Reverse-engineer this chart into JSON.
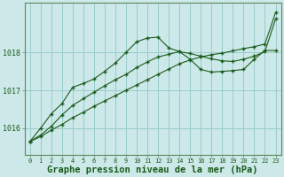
{
  "background_color": "#cce8e8",
  "plot_bg_color": "#cce8e8",
  "line_color": "#1a5c1a",
  "grid_color": "#99cccc",
  "xlabel": "Graphe pression niveau de la mer (hPa)",
  "xlabel_fontsize": 7.5,
  "ylim": [
    1015.3,
    1019.3
  ],
  "xlim": [
    -0.5,
    23.5
  ],
  "yticks": [
    1016,
    1017,
    1018
  ],
  "xticks": [
    0,
    1,
    2,
    3,
    4,
    5,
    6,
    7,
    8,
    9,
    10,
    11,
    12,
    13,
    14,
    15,
    16,
    17,
    18,
    19,
    20,
    21,
    22,
    23
  ],
  "series1_x": [
    0,
    1,
    2,
    3,
    4,
    5,
    6,
    7,
    8,
    9,
    10,
    11,
    12,
    13,
    14,
    15,
    16,
    17,
    18,
    19,
    20,
    21,
    22,
    23
  ],
  "series1_y": [
    1015.65,
    1015.78,
    1015.95,
    1016.1,
    1016.28,
    1016.42,
    1016.58,
    1016.72,
    1016.86,
    1017.0,
    1017.14,
    1017.28,
    1017.42,
    1017.56,
    1017.7,
    1017.8,
    1017.88,
    1017.94,
    1017.98,
    1018.04,
    1018.1,
    1018.15,
    1018.22,
    1019.05
  ],
  "series2_x": [
    0,
    1,
    2,
    3,
    4,
    5,
    6,
    7,
    8,
    9,
    10,
    11,
    12,
    13,
    14,
    15,
    16,
    17,
    18,
    19,
    20,
    21,
    22,
    23
  ],
  "series2_y": [
    1015.65,
    1015.82,
    1016.05,
    1016.35,
    1016.6,
    1016.78,
    1016.95,
    1017.12,
    1017.28,
    1017.42,
    1017.6,
    1017.75,
    1017.88,
    1017.95,
    1018.02,
    1017.97,
    1017.9,
    1017.83,
    1017.78,
    1017.76,
    1017.82,
    1017.9,
    1018.02,
    1018.88
  ],
  "series3_x": [
    0,
    1,
    2,
    3,
    4,
    5,
    6,
    7,
    8,
    9,
    10,
    11,
    12,
    13,
    14,
    15,
    16,
    17,
    18,
    19,
    20,
    21,
    22,
    23
  ],
  "series3_y": [
    1015.65,
    1016.0,
    1016.38,
    1016.65,
    1017.08,
    1017.18,
    1017.3,
    1017.5,
    1017.72,
    1018.0,
    1018.28,
    1018.38,
    1018.4,
    1018.12,
    1018.02,
    1017.82,
    1017.55,
    1017.48,
    1017.5,
    1017.52,
    1017.55,
    1017.82,
    1018.05,
    1018.05
  ]
}
